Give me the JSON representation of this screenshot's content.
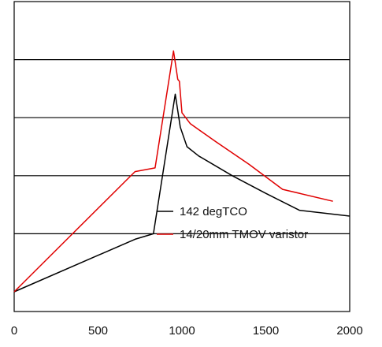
{
  "chart_data": {
    "type": "line",
    "xlim": [
      0,
      2000
    ],
    "ylim": [
      0,
      100
    ],
    "x_ticks": [
      0,
      500,
      1000,
      1500,
      2000
    ],
    "x_tick_labels": [
      "0",
      "500",
      "1000",
      "1500",
      "2000"
    ],
    "grid_y": [
      20,
      40,
      60,
      80
    ],
    "grid": "horizontal",
    "legend_position": "center-right",
    "series": [
      {
        "name": "142 degTCO",
        "color": "#000000",
        "points": [
          [
            0,
            0
          ],
          [
            720,
            18.1
          ],
          [
            830,
            20
          ],
          [
            960,
            68.1
          ],
          [
            990,
            56.7
          ],
          [
            1030,
            50
          ],
          [
            1100,
            46.8
          ],
          [
            1300,
            40
          ],
          [
            1500,
            33.9
          ],
          [
            1700,
            28.1
          ],
          [
            2000,
            26.1
          ]
        ]
      },
      {
        "name": "14/20mm TMOV varistor",
        "color": "#e00000",
        "points": [
          [
            0,
            0
          ],
          [
            720,
            41.4
          ],
          [
            840,
            42.7
          ],
          [
            950,
            83
          ],
          [
            975,
            73.2
          ],
          [
            985,
            72.5
          ],
          [
            1000,
            61.7
          ],
          [
            1050,
            57.9
          ],
          [
            1200,
            51.8
          ],
          [
            1400,
            43.9
          ],
          [
            1600,
            35.3
          ],
          [
            1900,
            31.2
          ]
        ]
      }
    ]
  }
}
